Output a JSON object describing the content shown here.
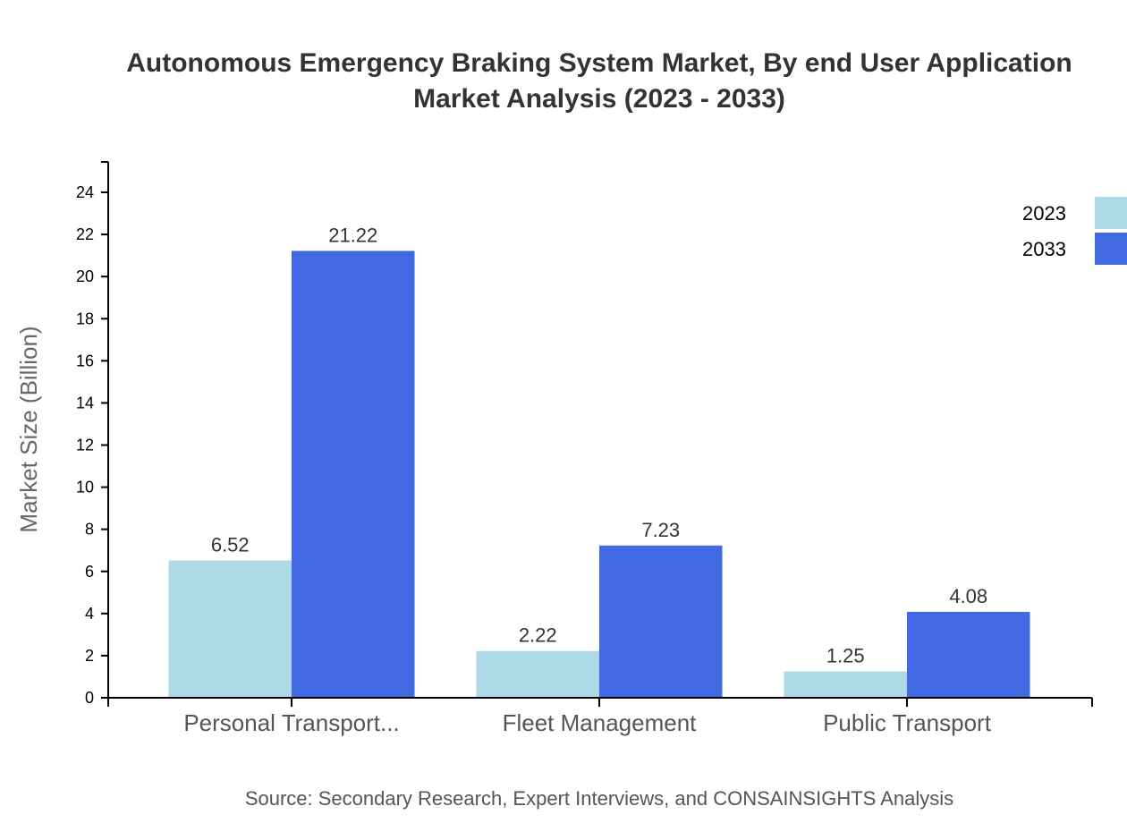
{
  "chart_data": {
    "type": "bar",
    "title": [
      "Autonomous Emergency Braking System Market, By end User Application",
      "Market Analysis (2023 - 2033)"
    ],
    "xlabel": "",
    "ylabel": "Market Size (Billion)",
    "ylim": [
      0,
      25.4
    ],
    "yticks": [
      0,
      2,
      4,
      6,
      8,
      10,
      12,
      14,
      16,
      18,
      20,
      22,
      24
    ],
    "categories": [
      "Personal Transport...",
      "Fleet Management",
      "Public Transport"
    ],
    "series": [
      {
        "name": "2023",
        "color": "#ADD8E6",
        "values": [
          6.52,
          2.22,
          1.25
        ]
      },
      {
        "name": "2033",
        "color": "#4169E1",
        "values": [
          21.22,
          7.23,
          4.08
        ]
      }
    ],
    "grid": false,
    "legend": "top-right",
    "source": "Source: Secondary Research, Expert Interviews, and CONSAINSIGHTS Analysis"
  }
}
